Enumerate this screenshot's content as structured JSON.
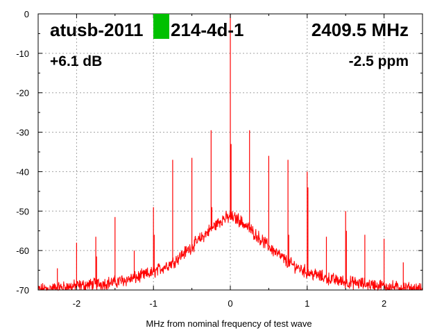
{
  "header": {
    "device": "atusb-2011",
    "device_suffix": "214-4d-1",
    "frequency": "2409.5 MHz",
    "gain": "+6.1 dB",
    "ppm": "-2.5 ppm",
    "marker_color": "#00c000"
  },
  "chart_data": {
    "type": "line",
    "xlabel": "MHz from nominal frequency of test wave",
    "ylabel": "",
    "xlim": [
      -2.5,
      2.5
    ],
    "ylim": [
      -70,
      0
    ],
    "x_ticks": [
      -2,
      -1,
      0,
      1,
      2
    ],
    "x_tick_labels": [
      "-2",
      "-1",
      "0",
      "1",
      "2"
    ],
    "y_ticks": [
      0,
      -10,
      -20,
      -30,
      -40,
      -50,
      -60,
      -70
    ],
    "y_tick_labels": [
      "0",
      "-10",
      "-20",
      "-30",
      "-40",
      "-50",
      "-60",
      "-70"
    ],
    "grid": true,
    "line_color": "#ff0000",
    "noise_envelope": {
      "x": [
        -2.5,
        -2.25,
        -2.0,
        -1.75,
        -1.5,
        -1.25,
        -1.0,
        -0.75,
        -0.5,
        -0.25,
        -0.1,
        0.0,
        0.1,
        0.25,
        0.5,
        0.75,
        1.0,
        1.25,
        1.5,
        1.75,
        2.0,
        2.25,
        2.5
      ],
      "y": [
        -70,
        -69.5,
        -69,
        -68.5,
        -68,
        -67,
        -65.5,
        -63,
        -59,
        -54.5,
        -52,
        -51.5,
        -52,
        -54.5,
        -59,
        -63,
        -65.5,
        -67,
        -68,
        -68.5,
        -69,
        -69.5,
        -70
      ]
    },
    "spurs": {
      "x": [
        -2.25,
        -2.0,
        -1.75,
        -1.74,
        -1.5,
        -1.25,
        -1.0,
        -0.99,
        -0.75,
        -0.5,
        -0.25,
        -0.24,
        0.0,
        0.01,
        0.25,
        0.5,
        0.75,
        0.76,
        1.0,
        1.01,
        1.25,
        1.5,
        1.51,
        1.75,
        2.0,
        2.25
      ],
      "y": [
        -64.5,
        -58,
        -56.5,
        -61.5,
        -51.5,
        -60,
        -49,
        -56,
        -37,
        -36.5,
        -29.5,
        -49,
        0,
        -33,
        -29.5,
        -36,
        -37,
        -56,
        -40,
        -44,
        -56.5,
        -50,
        -55,
        -56,
        -57,
        -63
      ]
    }
  }
}
